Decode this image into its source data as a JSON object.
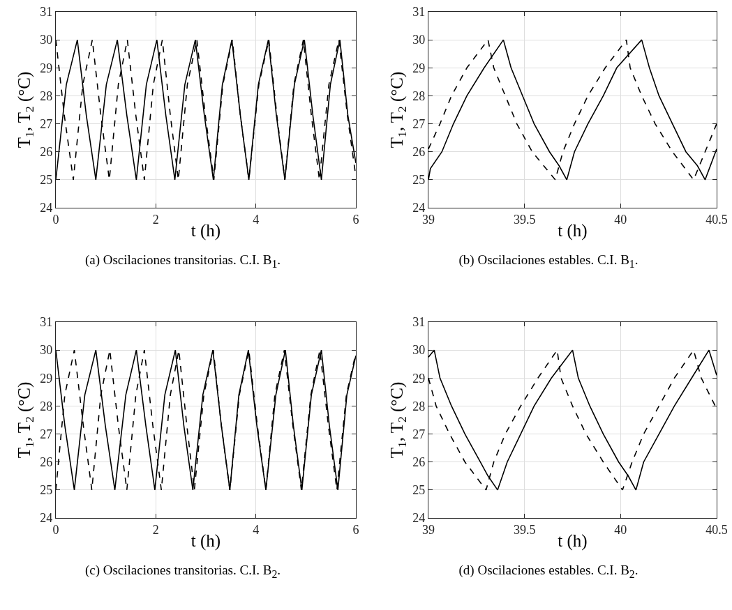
{
  "chart_data": [
    {
      "type": "line",
      "title": "(a) Oscilaciones transitorias. C.I. B$_{1}$.",
      "xlabel": "t (h)",
      "ylabel": "T$_{1}$, T$_{2}$ (°C)",
      "xlim": [
        0,
        6
      ],
      "xticks": [
        0,
        2,
        4,
        6
      ],
      "ylim": [
        24,
        31
      ],
      "yticks": [
        24,
        25,
        26,
        27,
        28,
        29,
        30,
        31
      ],
      "grid": true,
      "series": [
        {
          "color": "#000000",
          "line_style": "solid",
          "x": [
            0,
            0.21,
            0.43,
            0.61,
            0.8,
            1.01,
            1.23,
            1.42,
            1.61,
            1.81,
            2.02,
            2.2,
            2.38,
            2.58,
            2.79,
            2.97,
            3.15,
            3.33,
            3.52,
            3.69,
            3.86,
            4.05,
            4.25,
            4.41,
            4.58,
            4.77,
            4.97,
            5.14,
            5.31,
            5.49,
            5.68,
            5.84,
            6
          ],
          "values": [
            25,
            28.4,
            30,
            27.3,
            25,
            28.4,
            30,
            27.3,
            25,
            28.4,
            30,
            27.3,
            25,
            28.4,
            30,
            27.3,
            25,
            28.4,
            30,
            27.3,
            25,
            28.4,
            30,
            27.3,
            25,
            28.4,
            30,
            27.3,
            25,
            28.4,
            30,
            27.3,
            25.6
          ]
        },
        {
          "color": "#000000",
          "line_style": "dashed",
          "x": [
            0,
            0.17,
            0.35,
            0.54,
            0.73,
            0.9,
            1.07,
            1.25,
            1.43,
            1.6,
            1.77,
            1.95,
            2.13,
            2.29,
            2.45,
            2.63,
            2.82,
            2.99,
            3.16,
            3.34,
            3.53,
            3.69,
            3.86,
            4.06,
            4.26,
            4.42,
            4.58,
            4.76,
            4.95,
            5.11,
            5.27,
            5.46,
            5.66,
            5.83,
            6
          ],
          "values": [
            30,
            27.3,
            25,
            28.4,
            30,
            27.3,
            25,
            28.4,
            30,
            27.3,
            25,
            28.4,
            30,
            27.3,
            25,
            28.4,
            30,
            27.3,
            25,
            28.4,
            30,
            27.3,
            25,
            28.4,
            30,
            27.3,
            25,
            28.4,
            30,
            27.3,
            25,
            28.4,
            30,
            27.3,
            25.1
          ]
        }
      ]
    },
    {
      "type": "line",
      "title": "(b) Oscilaciones estables. C.I. B$_{1}$.",
      "xlabel": "t (h)",
      "ylabel": "T$_{1}$, T$_{2}$ (°C)",
      "xlim": [
        39,
        40.5
      ],
      "xticks": [
        39,
        39.5,
        40,
        40.5
      ],
      "ylim": [
        24,
        31
      ],
      "yticks": [
        24,
        25,
        26,
        27,
        28,
        29,
        30,
        31
      ],
      "grid": true,
      "series": [
        {
          "color": "#000000",
          "line_style": "solid",
          "x": [
            39,
            39.01,
            39.07,
            39.13,
            39.2,
            39.29,
            39.39,
            39.41,
            39.43,
            39.49,
            39.55,
            39.63,
            39.68,
            39.72,
            39.76,
            39.83,
            39.91,
            39.98,
            40.11,
            40.15,
            40.2,
            40.27,
            40.34,
            40.4,
            40.44,
            40.5
          ],
          "values": [
            25,
            25.4,
            26,
            27,
            28,
            29,
            30,
            29.5,
            29,
            28,
            27,
            26,
            25.5,
            25,
            26,
            27,
            28,
            29,
            30,
            29,
            28,
            27,
            26,
            25.5,
            25,
            26.1
          ]
        },
        {
          "color": "#000000",
          "line_style": "dashed",
          "x": [
            39,
            39.06,
            39.12,
            39.2,
            39.31,
            39.34,
            39.4,
            39.46,
            39.54,
            39.66,
            39.7,
            39.76,
            39.83,
            39.92,
            40.03,
            40.05,
            40.11,
            40.18,
            40.27,
            40.38,
            40.5
          ],
          "values": [
            26.1,
            27,
            28,
            29,
            30,
            29,
            28,
            27,
            26,
            25,
            26,
            27,
            28,
            29,
            30,
            29,
            28,
            27,
            26,
            25,
            27
          ]
        }
      ]
    },
    {
      "type": "line",
      "title": "(c) Oscilaciones transitorias. C.I. B$_{2}$.",
      "xlabel": "t (h)",
      "ylabel": "T$_{1}$, T$_{2}$ (°C)",
      "xlim": [
        0,
        6
      ],
      "xticks": [
        0,
        2,
        4,
        6
      ],
      "ylim": [
        24,
        31
      ],
      "yticks": [
        24,
        25,
        26,
        27,
        28,
        29,
        30,
        31
      ],
      "grid": true,
      "series": [
        {
          "color": "#000000",
          "line_style": "solid",
          "x": [
            0,
            0.18,
            0.37,
            0.58,
            0.8,
            0.99,
            1.18,
            1.4,
            1.61,
            1.8,
            1.98,
            2.18,
            2.39,
            2.56,
            2.74,
            2.94,
            3.14,
            3.31,
            3.48,
            3.66,
            3.85,
            4.02,
            4.2,
            4.4,
            4.59,
            4.75,
            4.92,
            5.11,
            5.31,
            5.47,
            5.64,
            5.82,
            6
          ],
          "values": [
            30,
            27.3,
            25,
            28.4,
            30,
            27.3,
            25,
            28.4,
            30,
            27.3,
            25,
            28.4,
            30,
            27.3,
            25,
            28.4,
            30,
            27.3,
            25,
            28.4,
            30,
            27.3,
            25,
            28.4,
            30,
            27.3,
            25,
            28.4,
            30,
            27.3,
            25,
            28.4,
            29.8
          ]
        },
        {
          "color": "#000000",
          "line_style": "dashed",
          "x": [
            0,
            0.18,
            0.37,
            0.55,
            0.72,
            0.9,
            1.08,
            1.25,
            1.42,
            1.6,
            1.77,
            1.94,
            2.11,
            2.29,
            2.46,
            2.62,
            2.77,
            2.96,
            3.15,
            3.31,
            3.48,
            3.67,
            3.86,
            4.03,
            4.2,
            4.38,
            4.57,
            4.74,
            4.91,
            5.1,
            5.28,
            5.45,
            5.62,
            5.81,
            6
          ],
          "values": [
            25,
            28.4,
            30,
            27.3,
            25,
            28.4,
            30,
            27.3,
            25,
            28.4,
            30,
            27.3,
            25,
            28.4,
            30,
            27.3,
            25,
            28.4,
            30,
            27.3,
            25,
            28.4,
            30,
            27.3,
            25,
            28.4,
            30,
            27.3,
            25,
            28.4,
            30,
            27.3,
            25,
            28.4,
            29.9
          ]
        }
      ]
    },
    {
      "type": "line",
      "title": "(d) Oscilaciones estables. C.I. B$_{2}$.",
      "xlabel": "t (h)",
      "ylabel": "T$_{1}$, T$_{2}$ (°C)",
      "xlim": [
        39,
        40.5
      ],
      "xticks": [
        39,
        39.5,
        40,
        40.5
      ],
      "ylim": [
        24,
        31
      ],
      "yticks": [
        24,
        25,
        26,
        27,
        28,
        29,
        30,
        31
      ],
      "grid": true,
      "series": [
        {
          "color": "#000000",
          "line_style": "solid",
          "x": [
            39,
            39.03,
            39.06,
            39.12,
            39.19,
            39.27,
            39.31,
            39.36,
            39.41,
            39.48,
            39.55,
            39.64,
            39.75,
            39.78,
            39.84,
            39.91,
            39.99,
            40.04,
            40.08,
            40.12,
            40.2,
            40.28,
            40.37,
            40.46,
            40.5
          ],
          "values": [
            29.75,
            30,
            29,
            28,
            27,
            26,
            25.5,
            25,
            26,
            27,
            28,
            29,
            30,
            29,
            28,
            27,
            26,
            25.5,
            25,
            26,
            27,
            28,
            29,
            30,
            29.1
          ]
        },
        {
          "color": "#000000",
          "line_style": "dashed",
          "x": [
            39,
            39.04,
            39.11,
            39.19,
            39.3,
            39.34,
            39.4,
            39.48,
            39.57,
            39.67,
            39.69,
            39.75,
            39.82,
            39.91,
            40.01,
            40.06,
            40.12,
            40.2,
            40.28,
            40.38,
            40.42,
            40.5
          ],
          "values": [
            29,
            28,
            27,
            26,
            25,
            26,
            27,
            28,
            29,
            30,
            29,
            28,
            27,
            26,
            25,
            26,
            27,
            28,
            29,
            30,
            29,
            27.9
          ]
        }
      ]
    }
  ]
}
